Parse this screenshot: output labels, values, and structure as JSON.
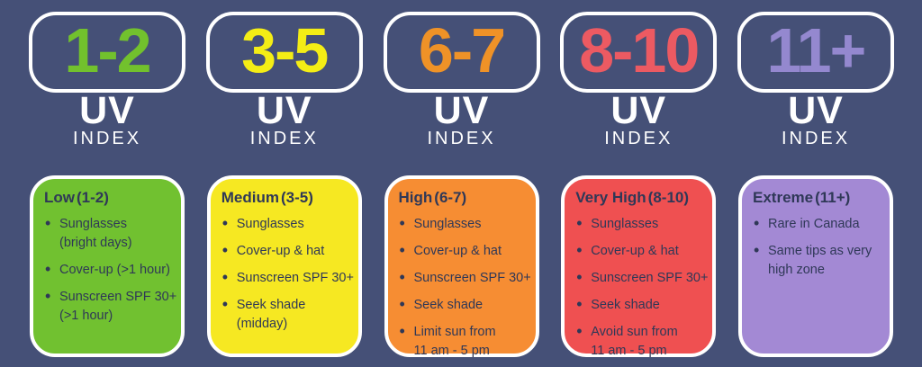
{
  "page": {
    "background_color": "#455077",
    "card_text_color": "#2f3857",
    "border_color": "#ffffff"
  },
  "uv_label": "UV",
  "index_label": "INDEX",
  "columns": [
    {
      "range": "1-2",
      "number_color": "#72c12d",
      "card_color": "#71c130",
      "level": "Low",
      "level_range": "(1-2)",
      "bullets": [
        "Sunglasses\n(bright days)",
        "Cover-up (>1 hour)",
        "Sunscreen SPF 30+\n(>1 hour)"
      ]
    },
    {
      "range": "3-5",
      "number_color": "#f4ed15",
      "card_color": "#f6e822",
      "level": "Medium",
      "level_range": "(3-5)",
      "bullets": [
        "Sunglasses",
        "Cover-up & hat",
        "Sunscreen SPF 30+",
        "Seek shade\n(midday)"
      ]
    },
    {
      "range": "6-7",
      "number_color": "#ef9227",
      "card_color": "#f68d33",
      "level": "High",
      "level_range": "(6-7)",
      "bullets": [
        "Sunglasses",
        "Cover-up & hat",
        "Sunscreen SPF 30+",
        "Seek shade",
        "Limit sun from\n11 am - 5 pm"
      ]
    },
    {
      "range": "8-10",
      "number_color": "#ec5a62",
      "card_color": "#ef5051",
      "level": "Very High",
      "level_range": "(8-10)",
      "bullets": [
        "Sunglasses",
        "Cover-up & hat",
        "Sunscreen SPF 30+",
        "Seek shade",
        "Avoid sun from\n11 am - 5 pm"
      ]
    },
    {
      "range": "11+",
      "number_color": "#9488cf",
      "card_color": "#a389d4",
      "level": "Extreme",
      "level_range": "(11+)",
      "bullets": [
        "Rare in Canada",
        "Same tips as very\nhigh zone"
      ]
    }
  ],
  "chart_data": {
    "type": "table",
    "title": "UV Index sun-protection guide",
    "categories": [
      "1-2",
      "3-5",
      "6-7",
      "8-10",
      "11+"
    ],
    "series": [
      {
        "name": "Low (1-2)",
        "values": [
          "Sunglasses (bright days)",
          "Cover-up (>1 hour)",
          "Sunscreen SPF 30+ (>1 hour)"
        ]
      },
      {
        "name": "Medium (3-5)",
        "values": [
          "Sunglasses",
          "Cover-up & hat",
          "Sunscreen SPF 30+",
          "Seek shade (midday)"
        ]
      },
      {
        "name": "High (6-7)",
        "values": [
          "Sunglasses",
          "Cover-up & hat",
          "Sunscreen SPF 30+",
          "Seek shade",
          "Limit sun from 11 am - 5 pm"
        ]
      },
      {
        "name": "Very High (8-10)",
        "values": [
          "Sunglasses",
          "Cover-up & hat",
          "Sunscreen SPF 30+",
          "Seek shade",
          "Avoid sun from 11 am - 5 pm"
        ]
      },
      {
        "name": "Extreme (11+)",
        "values": [
          "Rare in Canada",
          "Same tips as very high zone"
        ]
      }
    ]
  }
}
